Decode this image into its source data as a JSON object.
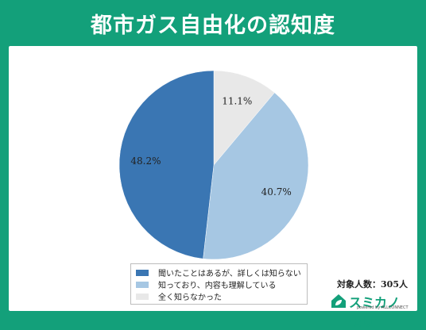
{
  "title": "都市ガス自由化の認知度",
  "note": "対象人数：305人",
  "brand": {
    "name": "スミカノモリ",
    "sub": "powered by ALLCONNECT",
    "logo_icon": "house-leaf-icon",
    "color": "#13a07a"
  },
  "chart_data": {
    "type": "pie",
    "start": "12-o'clock",
    "direction": "clockwise",
    "legend_position": "bottom-center",
    "slices": [
      {
        "label": "全く知らなかった",
        "value": 11.1,
        "display": "11.1%",
        "color": "#e8e8e8"
      },
      {
        "label": "知っており、内容も理解している",
        "value": 40.7,
        "display": "40.7%",
        "color": "#a6c7e3"
      },
      {
        "label": "聞いたことはあるが、詳しくは知らない",
        "value": 48.2,
        "display": "48.2%",
        "color": "#3a76b3"
      }
    ],
    "legend_order": [
      2,
      1,
      0
    ]
  }
}
